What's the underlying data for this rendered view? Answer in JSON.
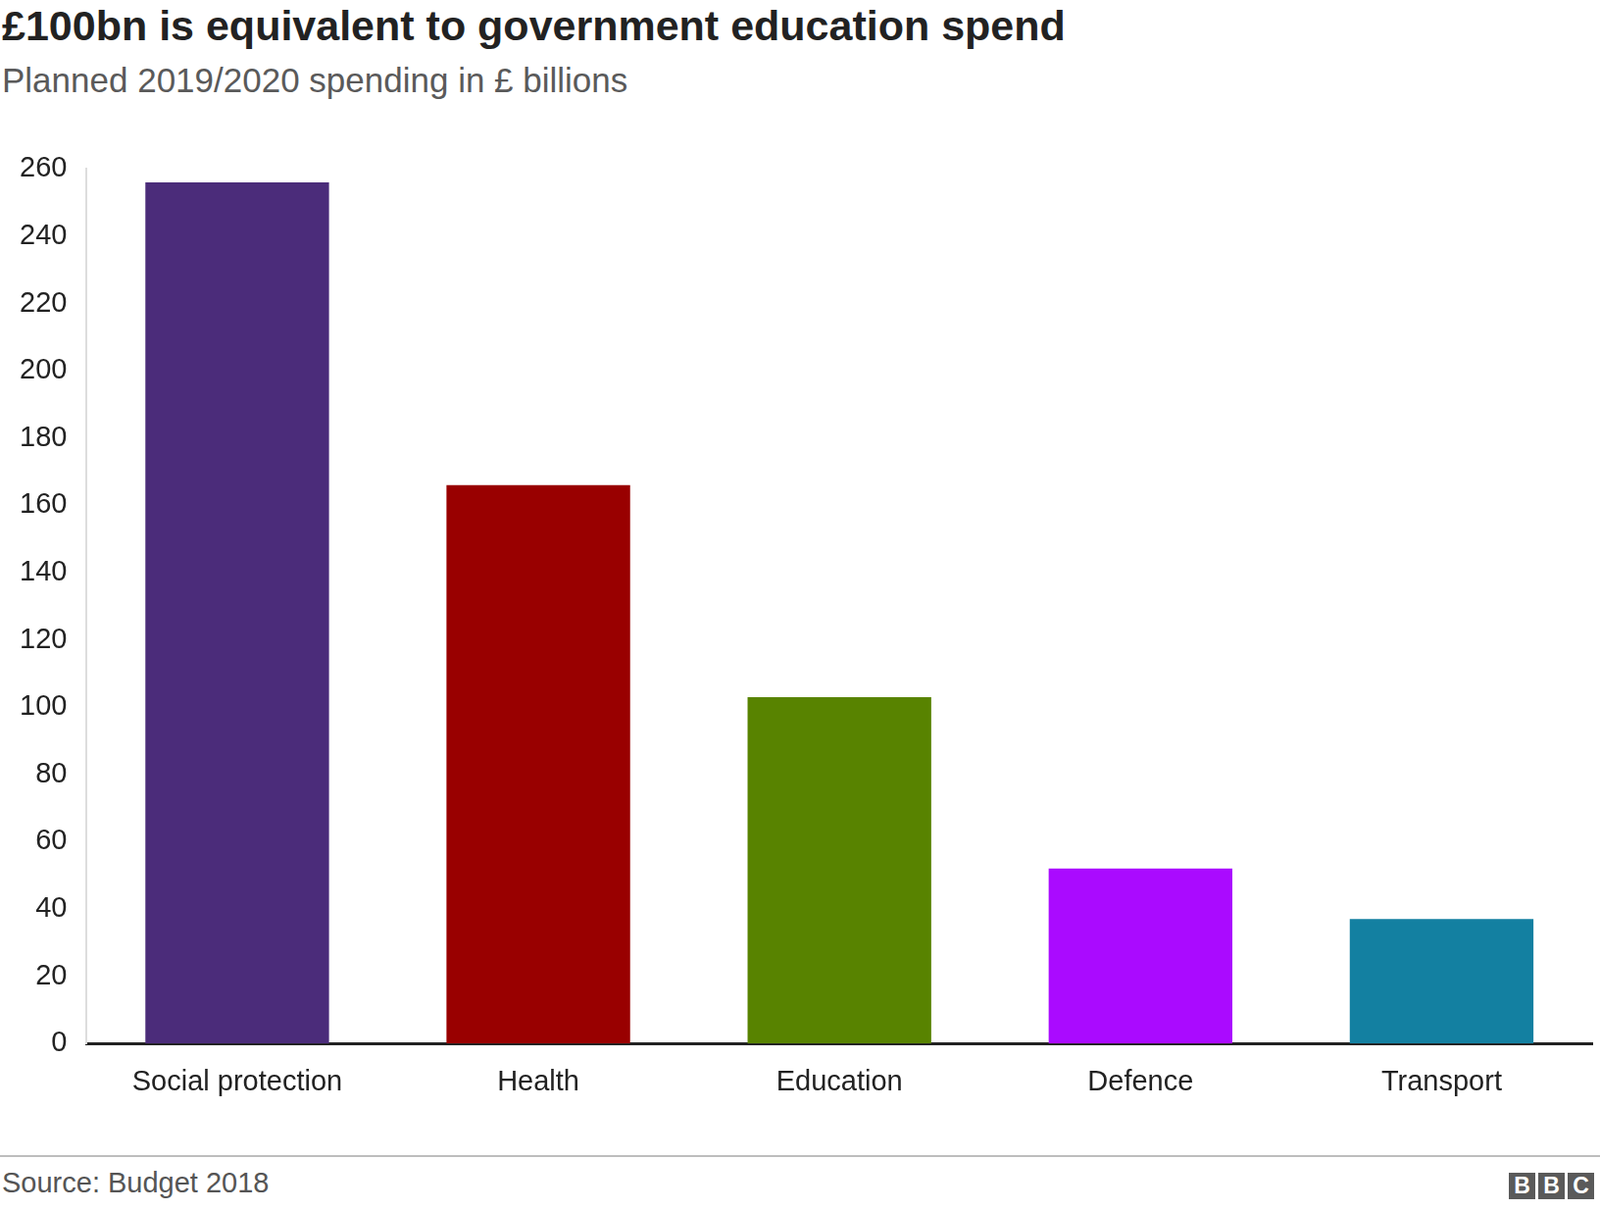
{
  "chart_data": {
    "type": "bar",
    "title": "£100bn is equivalent to government education spend",
    "subtitle": "Planned 2019/2020 spending in £ billions",
    "categories": [
      "Social protection",
      "Health",
      "Education",
      "Defence",
      "Transport"
    ],
    "values": [
      256,
      166,
      103,
      52,
      37
    ],
    "colors": [
      "#4b2c7a",
      "#990000",
      "#588300",
      "#aa0aff",
      "#1380a1"
    ],
    "ylim": [
      0,
      260
    ],
    "yticks": [
      0,
      20,
      40,
      60,
      80,
      100,
      120,
      140,
      160,
      180,
      200,
      220,
      240,
      260
    ],
    "grid": false,
    "source": "Source: Budget 2018",
    "logo": "BBC"
  }
}
